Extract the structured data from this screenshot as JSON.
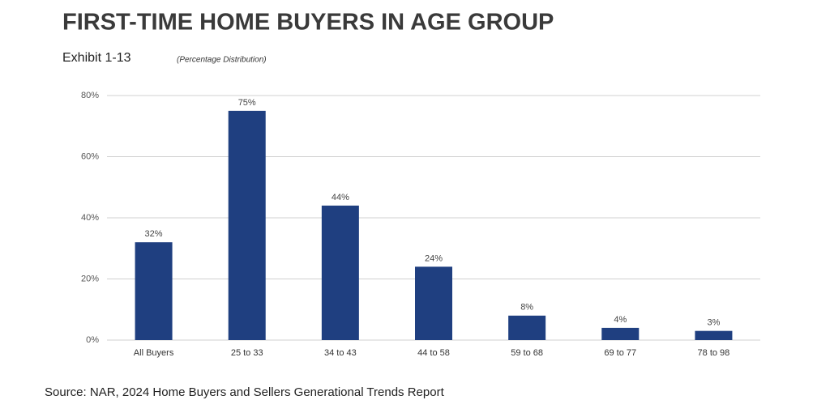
{
  "chart_data": {
    "type": "bar",
    "title": "FIRST-TIME HOME BUYERS IN AGE GROUP",
    "subtitle": "Exhibit 1-13",
    "note": "(Percentage Distribution)",
    "source": "Source: NAR, 2024 Home Buyers and Sellers Generational Trends Report",
    "categories": [
      "All Buyers",
      "25 to 33",
      "34 to 43",
      "44 to 58",
      "59 to 68",
      "69 to 77",
      "78 to 98"
    ],
    "values": [
      32,
      75,
      44,
      24,
      8,
      4,
      3
    ],
    "value_labels": [
      "32%",
      "75%",
      "44%",
      "24%",
      "8%",
      "4%",
      "3%"
    ],
    "color": "#1f3f80",
    "ylim": [
      0,
      80
    ],
    "yticks": [
      {
        "value": 0,
        "label": "0%"
      },
      {
        "value": 20,
        "label": "20%"
      },
      {
        "value": 40,
        "label": "40%"
      },
      {
        "value": 60,
        "label": "60%"
      },
      {
        "value": 80,
        "label": "80%"
      }
    ],
    "grid": true
  }
}
